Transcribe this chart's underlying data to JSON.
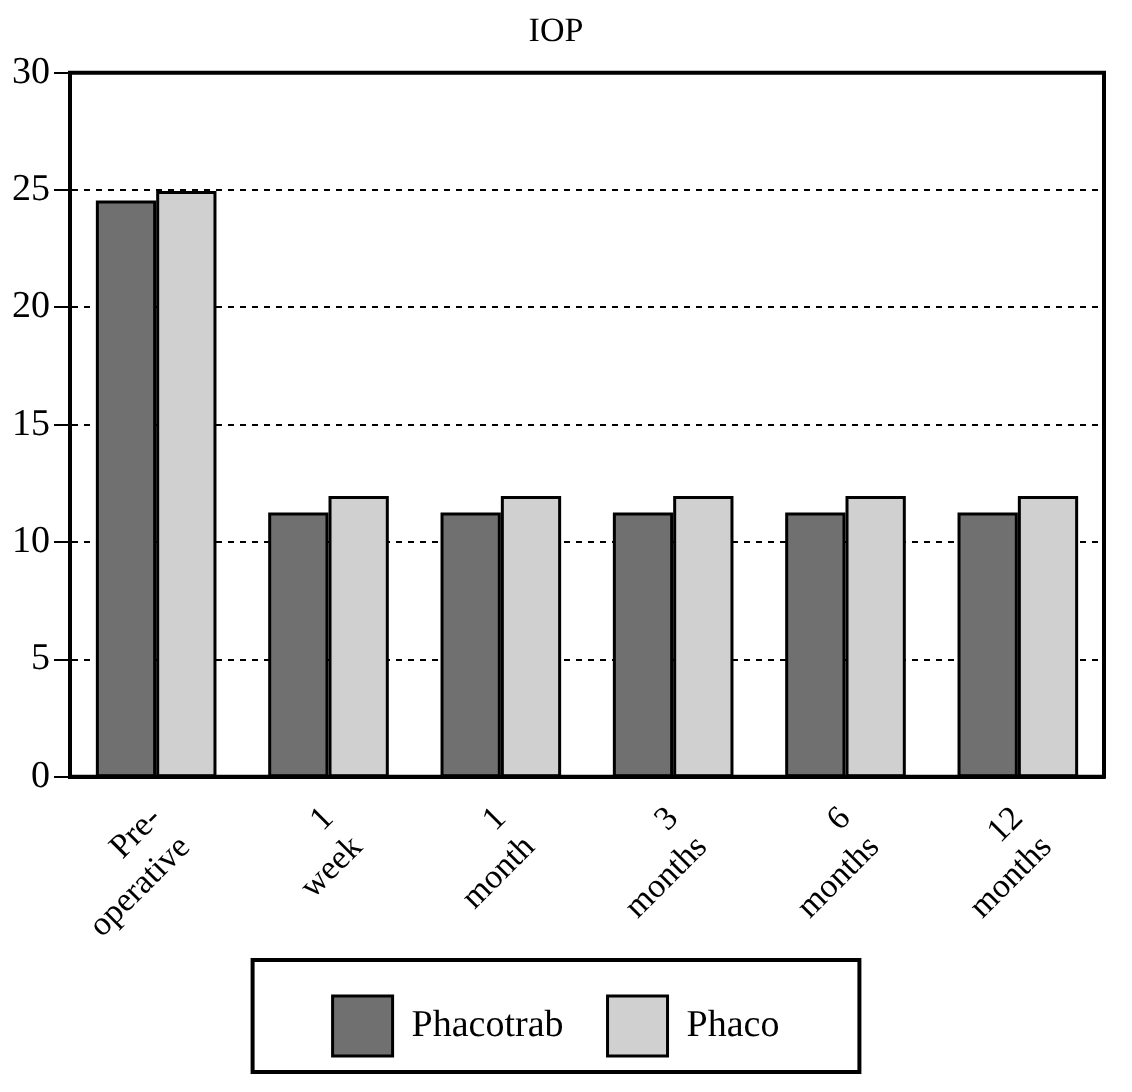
{
  "chart_data": {
    "type": "bar",
    "title": "IOP",
    "categories": [
      "Pre-operative",
      "1 week",
      "1 month",
      "3 months",
      "6 months",
      "12 months"
    ],
    "series": [
      {
        "name": "Phacotrab",
        "color": "#707070",
        "values": [
          24.5,
          11.2,
          11.2,
          11.2,
          11.2,
          11.2
        ]
      },
      {
        "name": "Phaco",
        "color": "#d0d0d0",
        "values": [
          24.9,
          11.9,
          11.9,
          11.9,
          11.9,
          11.9
        ]
      }
    ],
    "ylim": [
      0,
      30
    ],
    "yticks": [
      0,
      5,
      10,
      15,
      20,
      25,
      30
    ],
    "grid": "y",
    "legend": "bottom"
  }
}
